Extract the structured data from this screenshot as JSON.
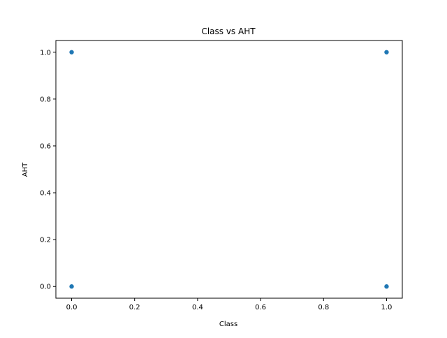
{
  "chart_data": {
    "type": "scatter",
    "title": "Class vs AHT",
    "xlabel": "Class",
    "ylabel": "AHT",
    "xlim": [
      -0.05,
      1.05
    ],
    "ylim": [
      -0.05,
      1.05
    ],
    "xticks": [
      "0.0",
      "0.2",
      "0.4",
      "0.6",
      "0.8",
      "1.0"
    ],
    "yticks": [
      "0.0",
      "0.2",
      "0.4",
      "0.6",
      "0.8",
      "1.0"
    ],
    "grid": false,
    "series": [
      {
        "color": "#1f77b4",
        "points": [
          {
            "x": 0.0,
            "y": 1.0
          },
          {
            "x": 0.0,
            "y": 0.0
          },
          {
            "x": 1.0,
            "y": 1.0
          },
          {
            "x": 1.0,
            "y": 0.0
          }
        ]
      }
    ]
  }
}
